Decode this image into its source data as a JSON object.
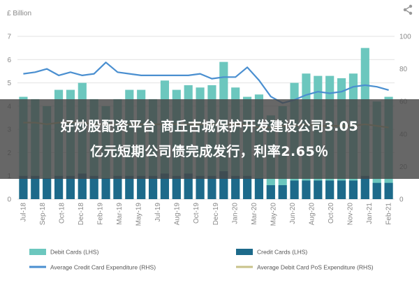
{
  "share_icon": "share-icon",
  "banner": {
    "line1": "好炒股配资平台 商丘古城保护开发建设公司3.05",
    "line2": "亿元短期公司债完成发行，利率2.65％"
  },
  "chart_data": {
    "type": "bar",
    "ylabel_left": "£ Billion",
    "ylim_left": [
      0,
      7
    ],
    "yticks_left": [
      "0",
      "1",
      "2",
      "3",
      "4",
      "5",
      "6",
      "7"
    ],
    "ylim_right": [
      0,
      100
    ],
    "yticks_right": [
      "0",
      "20",
      "40",
      "60",
      "80",
      "100"
    ],
    "grid": "horizontal",
    "legend_position": "bottom",
    "x_tick_labels": [
      "Jul-18",
      "Sep-18",
      "Oct-18",
      "Dec-18",
      "Feb-19",
      "Mar-19",
      "May-19",
      "Jul-19",
      "Aug-19",
      "Oct-19",
      "Dec-19",
      "Jan-20",
      "Mar-20",
      "May-20",
      "Jun-20",
      "Aug-20",
      "Oct-20",
      "Nov-20",
      "Jan-21",
      "Feb-21"
    ],
    "categories": [
      "Jul-18",
      "Aug-18",
      "Sep-18",
      "Oct-18",
      "Nov-18",
      "Dec-18",
      "Jan-19",
      "Feb-19",
      "Mar-19",
      "Apr-19",
      "May-19",
      "Jun-19",
      "Jul-19",
      "Aug-19",
      "Sep-19",
      "Oct-19",
      "Nov-19",
      "Dec-19",
      "Jan-20",
      "Feb-20",
      "Mar-20",
      "Apr-20",
      "May-20",
      "Jun-20",
      "Jul-20",
      "Aug-20",
      "Sep-20",
      "Oct-20",
      "Nov-20",
      "Dec-20",
      "Jan-21",
      "Feb-21"
    ],
    "series": [
      {
        "name": "Debit Cards (LHS)",
        "kind": "bar",
        "axis": "left",
        "color": "#6cc7be",
        "values": [
          4.4,
          4.3,
          4.0,
          4.7,
          4.7,
          5.0,
          4.3,
          4.0,
          4.3,
          4.7,
          4.7,
          4.3,
          5.1,
          4.7,
          4.9,
          4.8,
          4.9,
          5.9,
          4.8,
          4.4,
          4.5,
          3.6,
          4.0,
          5.0,
          5.4,
          5.3,
          5.3,
          5.2,
          5.4,
          6.5,
          4.2,
          4.4
        ]
      },
      {
        "name": "Credit Cards (LHS)",
        "kind": "bar",
        "axis": "left",
        "color": "#1d6a8a",
        "values": [
          1.0,
          1.0,
          0.9,
          1.0,
          1.0,
          1.1,
          1.0,
          0.9,
          1.0,
          1.0,
          1.0,
          1.0,
          1.1,
          1.0,
          1.1,
          1.0,
          1.0,
          1.2,
          1.0,
          1.0,
          0.9,
          0.6,
          0.6,
          0.8,
          0.8,
          0.8,
          0.8,
          0.8,
          0.8,
          1.0,
          0.7,
          0.7
        ]
      },
      {
        "name": "Average Credit Card Expenditure (RHS)",
        "kind": "line",
        "axis": "right",
        "color": "#4a8fd0",
        "values": [
          77,
          78,
          80,
          76,
          78,
          76,
          77,
          84,
          78,
          77,
          76,
          76,
          76,
          76,
          76,
          77,
          74,
          75,
          75,
          81,
          73,
          63,
          59,
          61,
          64,
          66,
          65,
          66,
          69,
          70,
          69,
          67
        ]
      },
      {
        "name": "Average Debit Card PoS Expenditure (RHS)",
        "kind": "line",
        "axis": "right",
        "color": "#c8c28a",
        "values": [
          47,
          47,
          46,
          47,
          47,
          47,
          46,
          46,
          46,
          46,
          46,
          46,
          46,
          46,
          46,
          46,
          46,
          46,
          46,
          46,
          44,
          44,
          45,
          45,
          46,
          45,
          45,
          45,
          45,
          46,
          45,
          44
        ]
      }
    ]
  }
}
